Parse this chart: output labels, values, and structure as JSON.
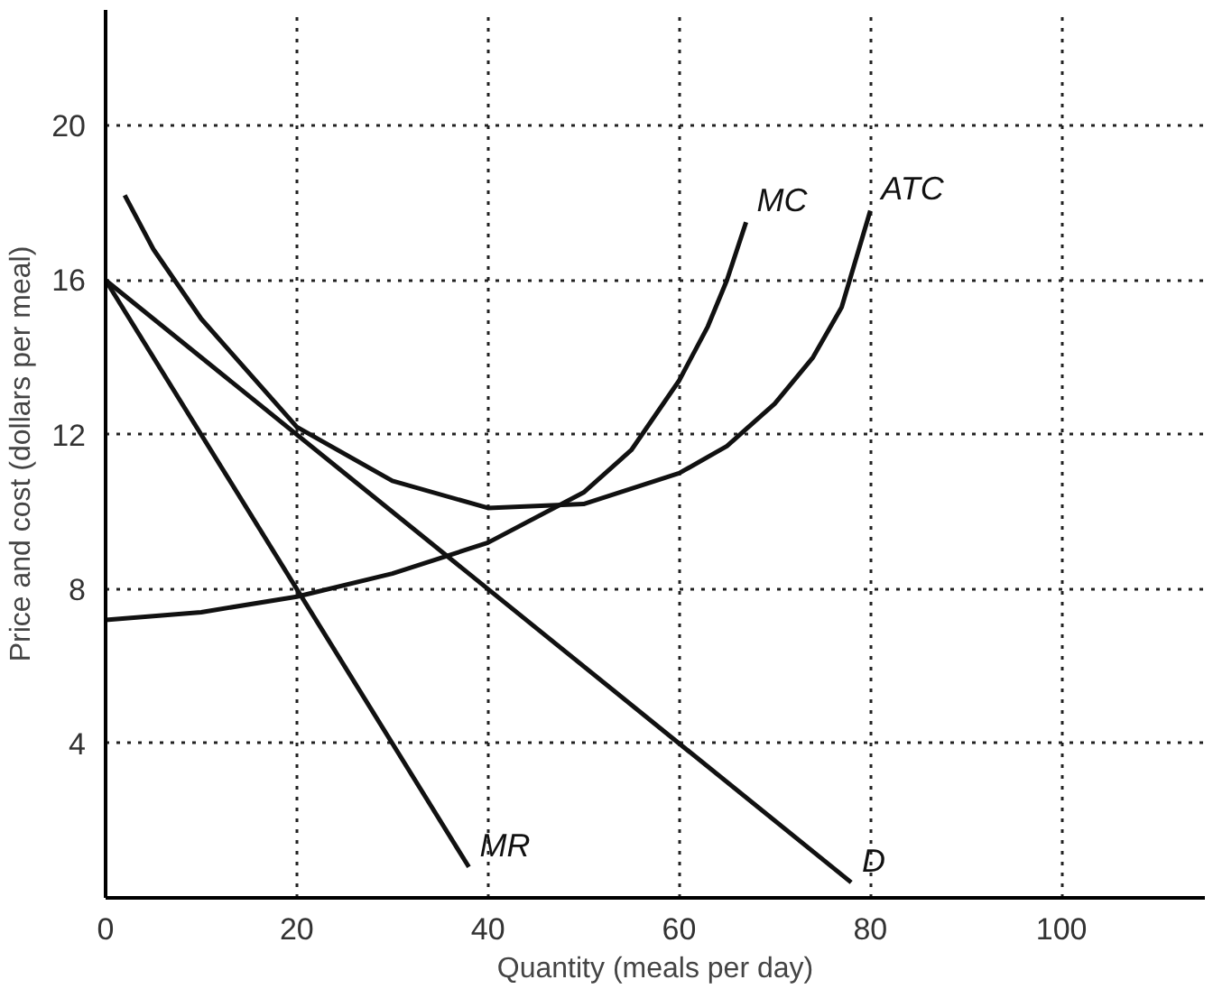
{
  "chart_data": {
    "type": "line",
    "xlabel": "Quantity (meals per day)",
    "ylabel": "Price and cost (dollars per meal)",
    "xlim": [
      0,
      115
    ],
    "ylim": [
      0,
      23
    ],
    "xticks": [
      0,
      20,
      40,
      60,
      80,
      100
    ],
    "yticks": [
      4,
      8,
      12,
      16,
      20
    ],
    "grid": true,
    "marker": "none",
    "line_style": "solid",
    "series": [
      {
        "name": "MC",
        "color": "#111111",
        "x": [
          0,
          10,
          20,
          30,
          40,
          50,
          55,
          60,
          63,
          65,
          67
        ],
        "values": [
          7.2,
          7.4,
          7.8,
          8.4,
          9.2,
          10.5,
          11.6,
          13.4,
          14.8,
          16,
          17.5
        ]
      },
      {
        "name": "ATC",
        "color": "#111111",
        "x": [
          2,
          5,
          10,
          20,
          30,
          40,
          50,
          60,
          65,
          70,
          74,
          77,
          80
        ],
        "values": [
          18.2,
          16.8,
          15,
          12.2,
          10.8,
          10.1,
          10.2,
          11,
          11.7,
          12.8,
          14,
          15.3,
          17.8
        ]
      },
      {
        "name": "MR",
        "color": "#111111",
        "x": [
          0,
          38
        ],
        "values": [
          16,
          0.8
        ]
      },
      {
        "name": "D",
        "color": "#111111",
        "x": [
          0,
          78
        ],
        "values": [
          16,
          0.4
        ]
      }
    ]
  }
}
